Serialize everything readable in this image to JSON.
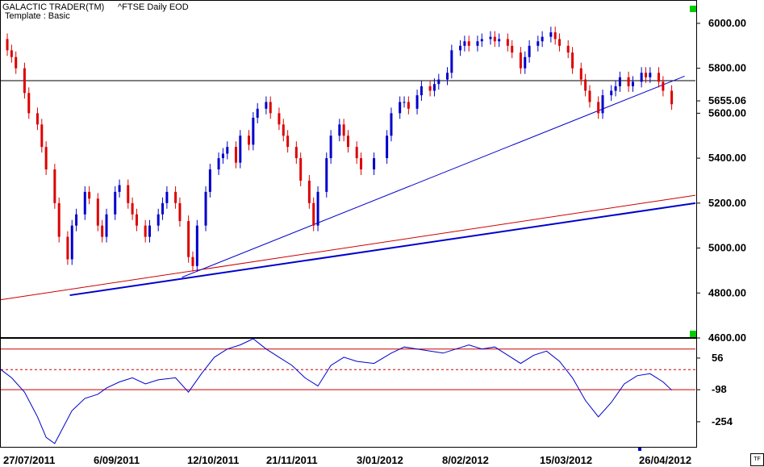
{
  "header": {
    "app_title": "GALACTIC TRADER(TM)",
    "instrument": "^FTSE Daily EOD",
    "template": "Template : Basic",
    "corner_button": "TF"
  },
  "colors": {
    "up": "#0000cc",
    "down": "#dd0000",
    "rsi_line": "#0000cc",
    "band_lines": "#cc0000"
  },
  "chart_data": [
    {
      "type": "candlestick",
      "title": "^FTSE Daily EOD",
      "ylim": [
        4600,
        6050
      ],
      "y_ticks": [
        {
          "value": 6000,
          "label": "6000.00"
        },
        {
          "value": 5800,
          "label": "5800.00"
        },
        {
          "value": 5655.06,
          "label": "5655.06"
        },
        {
          "value": 5600,
          "label": "5600.00"
        },
        {
          "value": 5400,
          "label": "5400.00"
        },
        {
          "value": 5200,
          "label": "5200.00"
        },
        {
          "value": 5000,
          "label": "5000.00"
        },
        {
          "value": 4800,
          "label": "4800.00"
        },
        {
          "value": 4600,
          "label": "4600.00"
        }
      ],
      "x_labels": [
        "27/07/2011",
        "6/09/2011",
        "12/10/2011",
        "21/11/2011",
        "3/01/2012",
        "8/02/2012",
        "15/03/2012",
        "26/04/2012"
      ],
      "horizontal_line": 5745,
      "trendlines": [
        {
          "color": "#cc0000",
          "from": [
            "2011-07-08",
            4770
          ],
          "to": [
            "2012-05-25",
            5235
          ]
        },
        {
          "color": "#0000cc",
          "from": [
            "2011-08-09",
            4790
          ],
          "to": [
            "2012-05-25",
            5200
          ]
        },
        {
          "color": "#0000cc",
          "from": [
            "2011-09-30",
            4870
          ],
          "to": [
            "2012-05-20",
            5765
          ]
        }
      ],
      "closes": [
        [
          "2011-07-08",
          5930
        ],
        [
          "2011-07-11",
          5880
        ],
        [
          "2011-07-13",
          5850
        ],
        [
          "2011-07-15",
          5800
        ],
        [
          "2011-07-19",
          5690
        ],
        [
          "2011-07-21",
          5600
        ],
        [
          "2011-07-25",
          5550
        ],
        [
          "2011-07-27",
          5450
        ],
        [
          "2011-07-29",
          5350
        ],
        [
          "2011-08-02",
          5200
        ],
        [
          "2011-08-04",
          5050
        ],
        [
          "2011-08-08",
          4950
        ],
        [
          "2011-08-10",
          5100
        ],
        [
          "2011-08-12",
          5150
        ],
        [
          "2011-08-16",
          5250
        ],
        [
          "2011-08-18",
          5220
        ],
        [
          "2011-08-22",
          5100
        ],
        [
          "2011-08-24",
          5050
        ],
        [
          "2011-08-26",
          5150
        ],
        [
          "2011-08-30",
          5250
        ],
        [
          "2011-09-01",
          5280
        ],
        [
          "2011-09-05",
          5200
        ],
        [
          "2011-09-07",
          5150
        ],
        [
          "2011-09-09",
          5100
        ],
        [
          "2011-09-13",
          5050
        ],
        [
          "2011-09-15",
          5100
        ],
        [
          "2011-09-19",
          5150
        ],
        [
          "2011-09-21",
          5200
        ],
        [
          "2011-09-23",
          5250
        ],
        [
          "2011-09-27",
          5200
        ],
        [
          "2011-09-29",
          5120
        ],
        [
          "2011-10-03",
          4960
        ],
        [
          "2011-10-05",
          4920
        ],
        [
          "2011-10-07",
          5100
        ],
        [
          "2011-10-11",
          5250
        ],
        [
          "2011-10-13",
          5350
        ],
        [
          "2011-10-17",
          5400
        ],
        [
          "2011-10-19",
          5420
        ],
        [
          "2011-10-21",
          5450
        ],
        [
          "2011-10-25",
          5380
        ],
        [
          "2011-10-27",
          5500
        ],
        [
          "2011-10-31",
          5460
        ],
        [
          "2011-11-02",
          5580
        ],
        [
          "2011-11-04",
          5620
        ],
        [
          "2011-11-08",
          5650
        ],
        [
          "2011-11-10",
          5600
        ],
        [
          "2011-11-14",
          5550
        ],
        [
          "2011-11-16",
          5500
        ],
        [
          "2011-11-18",
          5450
        ],
        [
          "2011-11-22",
          5400
        ],
        [
          "2011-11-24",
          5300
        ],
        [
          "2011-11-28",
          5200
        ],
        [
          "2011-11-30",
          5100
        ],
        [
          "2011-12-02",
          5250
        ],
        [
          "2011-12-06",
          5400
        ],
        [
          "2011-12-08",
          5500
        ],
        [
          "2011-12-12",
          5550
        ],
        [
          "2011-12-14",
          5500
        ],
        [
          "2011-12-16",
          5450
        ],
        [
          "2011-12-20",
          5400
        ],
        [
          "2011-12-22",
          5350
        ],
        [
          "2011-12-28",
          5400
        ],
        [
          "2012-01-03",
          5500
        ],
        [
          "2012-01-05",
          5600
        ],
        [
          "2012-01-09",
          5650
        ],
        [
          "2012-01-11",
          5650
        ],
        [
          "2012-01-13",
          5620
        ],
        [
          "2012-01-17",
          5680
        ],
        [
          "2012-01-19",
          5720
        ],
        [
          "2012-01-23",
          5700
        ],
        [
          "2012-01-25",
          5730
        ],
        [
          "2012-01-27",
          5750
        ],
        [
          "2012-01-31",
          5780
        ],
        [
          "2012-02-02",
          5880
        ],
        [
          "2012-02-06",
          5900
        ],
        [
          "2012-02-08",
          5920
        ],
        [
          "2012-02-10",
          5900
        ],
        [
          "2012-02-14",
          5920
        ],
        [
          "2012-02-16",
          5930
        ],
        [
          "2012-02-20",
          5940
        ],
        [
          "2012-02-22",
          5920
        ],
        [
          "2012-02-24",
          5930
        ],
        [
          "2012-02-28",
          5900
        ],
        [
          "2012-03-01",
          5870
        ],
        [
          "2012-03-05",
          5800
        ],
        [
          "2012-03-07",
          5850
        ],
        [
          "2012-03-09",
          5900
        ],
        [
          "2012-03-13",
          5920
        ],
        [
          "2012-03-15",
          5940
        ],
        [
          "2012-03-19",
          5960
        ],
        [
          "2012-03-21",
          5930
        ],
        [
          "2012-03-23",
          5900
        ],
        [
          "2012-03-27",
          5870
        ],
        [
          "2012-03-29",
          5800
        ],
        [
          "2012-04-02",
          5750
        ],
        [
          "2012-04-04",
          5700
        ],
        [
          "2012-04-06",
          5650
        ],
        [
          "2012-04-10",
          5600
        ],
        [
          "2012-04-12",
          5680
        ],
        [
          "2012-04-16",
          5700
        ],
        [
          "2012-04-18",
          5720
        ],
        [
          "2012-04-20",
          5760
        ],
        [
          "2012-04-24",
          5720
        ],
        [
          "2012-04-26",
          5740
        ],
        [
          "2012-04-30",
          5780
        ],
        [
          "2012-05-02",
          5760
        ],
        [
          "2012-05-04",
          5780
        ],
        [
          "2012-05-08",
          5740
        ],
        [
          "2012-05-10",
          5700
        ],
        [
          "2012-05-14",
          5640
        ]
      ]
    },
    {
      "type": "line",
      "title": "",
      "ylim": [
        -380,
        150
      ],
      "y_ticks": [
        {
          "value": 56,
          "label": "56"
        },
        {
          "value": -98,
          "label": "-98"
        },
        {
          "value": -254,
          "label": "-254"
        }
      ],
      "band_lines": [
        {
          "value": 100,
          "style": "solid"
        },
        {
          "value": 0,
          "style": "dashed"
        },
        {
          "value": -98,
          "style": "solid"
        }
      ],
      "series": [
        {
          "points": [
            [
              "2011-07-08",
              0
            ],
            [
              "2011-07-13",
              -40
            ],
            [
              "2011-07-19",
              -110
            ],
            [
              "2011-07-25",
              -230
            ],
            [
              "2011-07-29",
              -330
            ],
            [
              "2011-08-02",
              -360
            ],
            [
              "2011-08-06",
              -280
            ],
            [
              "2011-08-10",
              -200
            ],
            [
              "2011-08-16",
              -140
            ],
            [
              "2011-08-22",
              -120
            ],
            [
              "2011-08-26",
              -90
            ],
            [
              "2011-09-01",
              -60
            ],
            [
              "2011-09-07",
              -40
            ],
            [
              "2011-09-13",
              -70
            ],
            [
              "2011-09-19",
              -50
            ],
            [
              "2011-09-27",
              -40
            ],
            [
              "2011-10-03",
              -110
            ],
            [
              "2011-10-09",
              -20
            ],
            [
              "2011-10-15",
              60
            ],
            [
              "2011-10-21",
              100
            ],
            [
              "2011-10-27",
              120
            ],
            [
              "2011-11-02",
              150
            ],
            [
              "2011-11-08",
              100
            ],
            [
              "2011-11-14",
              60
            ],
            [
              "2011-11-20",
              20
            ],
            [
              "2011-11-26",
              -40
            ],
            [
              "2011-12-02",
              -80
            ],
            [
              "2011-12-08",
              20
            ],
            [
              "2011-12-14",
              60
            ],
            [
              "2011-12-20",
              40
            ],
            [
              "2011-12-28",
              30
            ],
            [
              "2012-01-05",
              80
            ],
            [
              "2012-01-11",
              110
            ],
            [
              "2012-01-17",
              100
            ],
            [
              "2012-01-23",
              90
            ],
            [
              "2012-01-29",
              80
            ],
            [
              "2012-02-04",
              100
            ],
            [
              "2012-02-10",
              120
            ],
            [
              "2012-02-16",
              100
            ],
            [
              "2012-02-22",
              110
            ],
            [
              "2012-02-28",
              70
            ],
            [
              "2012-03-05",
              30
            ],
            [
              "2012-03-11",
              70
            ],
            [
              "2012-03-17",
              90
            ],
            [
              "2012-03-23",
              40
            ],
            [
              "2012-03-29",
              -40
            ],
            [
              "2012-04-04",
              -150
            ],
            [
              "2012-04-10",
              -230
            ],
            [
              "2012-04-16",
              -160
            ],
            [
              "2012-04-22",
              -70
            ],
            [
              "2012-04-28",
              -30
            ],
            [
              "2012-05-04",
              -20
            ],
            [
              "2012-05-10",
              -60
            ],
            [
              "2012-05-14",
              -100
            ]
          ]
        }
      ]
    }
  ]
}
